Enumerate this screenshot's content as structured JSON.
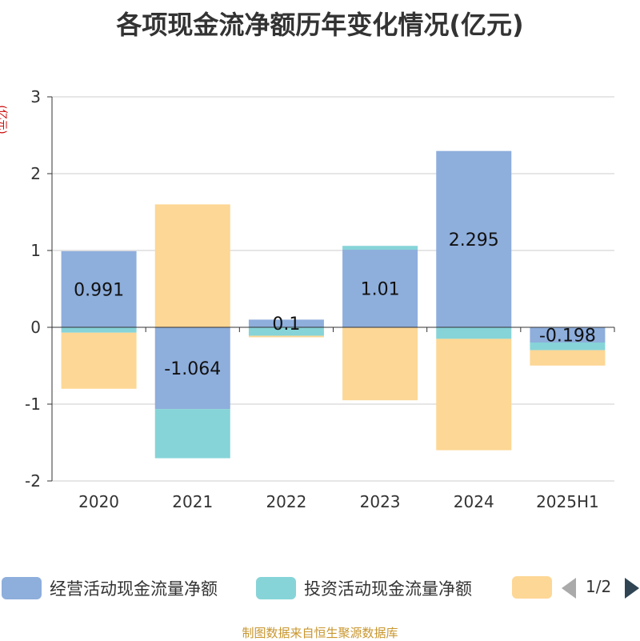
{
  "chart_data": {
    "type": "bar",
    "stacked": true,
    "title": "各项现金流净额历年变化情况(亿元)",
    "ylabel": "(亿元)",
    "categories": [
      "2020",
      "2021",
      "2022",
      "2023",
      "2024",
      "2025H1"
    ],
    "ylim": [
      -2,
      3
    ],
    "yticks": [
      "3",
      "2",
      "1",
      "0",
      "-1",
      "-2"
    ],
    "grid": true,
    "series": [
      {
        "name": "经营活动现金流量净额",
        "color": "#8eaedc",
        "values": [
          0.991,
          -1.064,
          0.1,
          1.01,
          2.295,
          -0.198
        ],
        "labels": [
          "0.991",
          "-1.064",
          "0.1",
          "1.01",
          "2.295",
          "-0.198"
        ]
      },
      {
        "name": "投资活动现金流量净额",
        "color": "#86d4d8",
        "values": [
          -0.07,
          -0.64,
          -0.11,
          0.05,
          -0.15,
          -0.1
        ]
      },
      {
        "name": "",
        "color": "#fdd795",
        "values": [
          -0.73,
          1.6,
          -0.02,
          -0.95,
          -1.45,
          -0.2
        ]
      }
    ]
  },
  "legend": {
    "items": [
      "经营活动现金流量净额",
      "投资活动现金流量净额",
      ""
    ],
    "page": "1/2"
  },
  "source": "制图数据来自恒生聚源数据库"
}
